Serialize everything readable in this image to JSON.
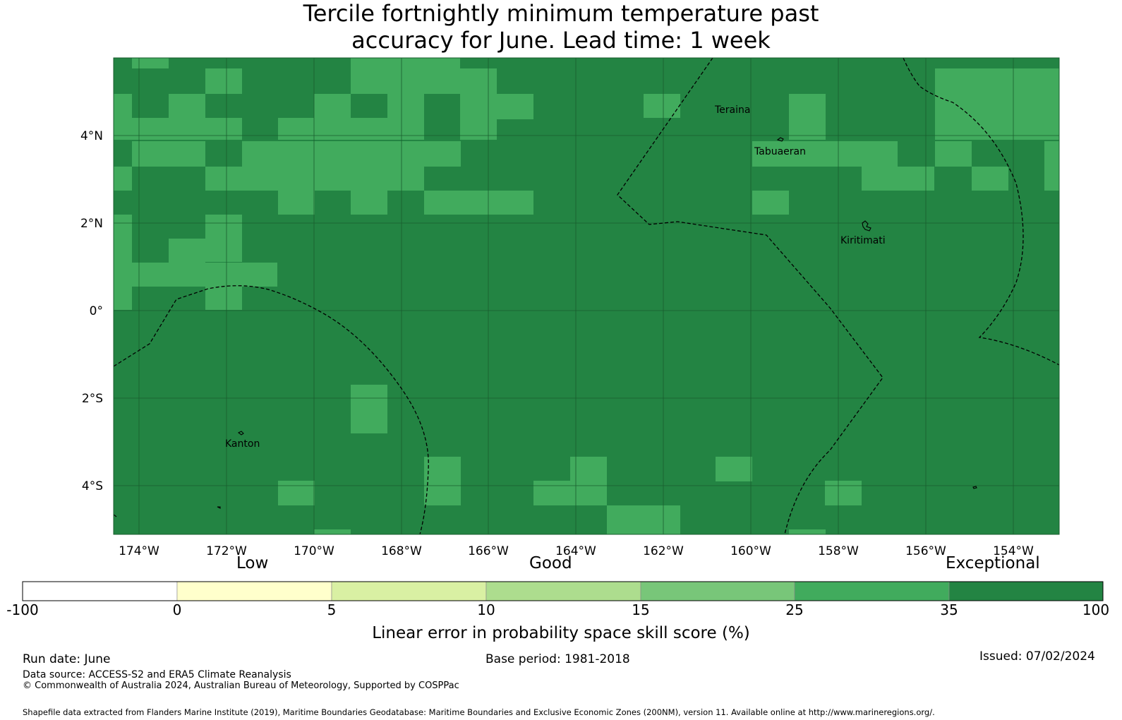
{
  "title": {
    "line1": "Tercile fortnightly minimum temperature past",
    "line2": "accuracy for June. Lead time: 1 week"
  },
  "map": {
    "lat_labels": [
      "4°N",
      "2°N",
      "0°",
      "2°S",
      "4°S"
    ],
    "lon_labels": [
      "174°W",
      "172°W",
      "170°W",
      "168°W",
      "166°W",
      "164°W",
      "162°W",
      "160°W",
      "158°W",
      "156°W",
      "154°W"
    ],
    "places": [
      "Teraina",
      "Tabuaeran",
      "Kiritimati",
      "Kanton"
    ],
    "colors": {
      "exceptional": "#238443",
      "high_good": "#41ab5d",
      "grid": "#1a5c2e",
      "eez_line": "#000000"
    }
  },
  "legend": {
    "categories": [
      "Low",
      "Good",
      "Exceptional"
    ],
    "ticks": [
      "-100",
      "0",
      "5",
      "10",
      "15",
      "25",
      "35",
      "100"
    ],
    "colors": [
      "#ffffff",
      "#ffffcc",
      "#d9f0a3",
      "#addd8e",
      "#78c679",
      "#41ab5d",
      "#238443"
    ],
    "title": "Linear error in probability space skill score (%)"
  },
  "footer": {
    "run_date": "Run date: June",
    "base_period": "Base period: 1981-2018",
    "issued": "Issued: 07/02/2024",
    "data_source": "Data source: ACCESS-S2 and ERA5 Climate Reanalysis",
    "copyright": "© Commonwealth of Australia 2024, Australian Bureau of Meteorology, Supported by COSPPac",
    "shapefile": "Shapefile data extracted from Flanders Marine Institute (2019), Maritime Boundaries Geodatabase: Maritime Boundaries and Exclusive Economic Zones (200NM), version 11. Available online at http://www.marineregions.org/."
  }
}
